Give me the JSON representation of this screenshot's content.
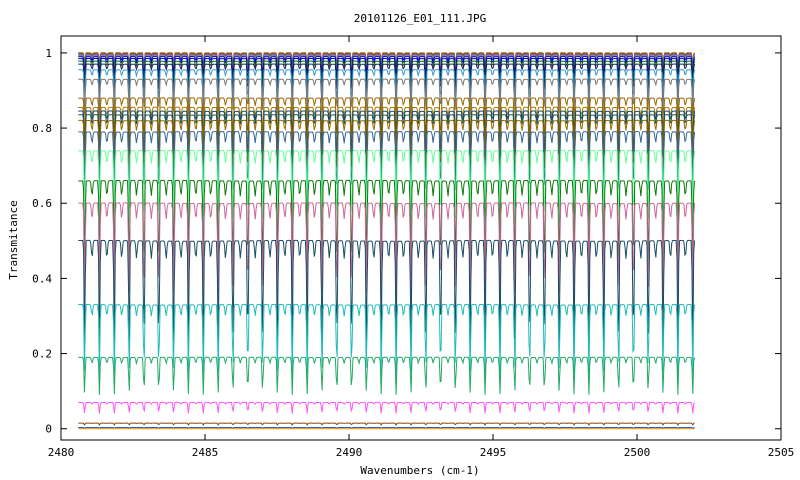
{
  "chart_data": {
    "type": "line",
    "title": "20101126_E01_111.JPG",
    "xlabel": "Wavenumbers (cm-1)",
    "ylabel": "Transmitance",
    "xlim": [
      2480,
      2505
    ],
    "ylim": [
      -0.03,
      1.045
    ],
    "xticks": [
      "2480",
      "2485",
      "2490",
      "2495",
      "2500",
      "2505"
    ],
    "yticks": [
      "0",
      "0.2",
      "0.4",
      "0.6",
      "0.8",
      "1"
    ],
    "x_range_data": [
      2480.6,
      2502.0
    ],
    "line_count_approx": 26,
    "grid": false,
    "legend": "none",
    "series": [
      {
        "baseline": 1.0,
        "depth": 0.03,
        "color": "#ff0000"
      },
      {
        "baseline": 0.998,
        "depth": 0.035,
        "color": "#00aa00"
      },
      {
        "baseline": 0.996,
        "depth": 0.04,
        "color": "#ff00ff"
      },
      {
        "baseline": 0.994,
        "depth": 0.045,
        "color": "#00aaaa"
      },
      {
        "baseline": 0.992,
        "depth": 0.05,
        "color": "#aaaa00"
      },
      {
        "baseline": 0.99,
        "depth": 0.06,
        "color": "#0000ff"
      },
      {
        "baseline": 0.985,
        "depth": 0.07,
        "color": "#0000aa"
      },
      {
        "baseline": 0.978,
        "depth": 0.08,
        "color": "#006600"
      },
      {
        "baseline": 0.97,
        "depth": 0.09,
        "color": "#1a1a66"
      },
      {
        "baseline": 0.955,
        "depth": 0.1,
        "color": "#3399cc"
      },
      {
        "baseline": 0.93,
        "depth": 0.1,
        "color": "#777777"
      },
      {
        "baseline": 0.88,
        "depth": 0.13,
        "color": "#996600"
      },
      {
        "baseline": 0.855,
        "depth": 0.14,
        "color": "#aa7700"
      },
      {
        "baseline": 0.845,
        "depth": 0.15,
        "color": "#0a4a7a"
      },
      {
        "baseline": 0.835,
        "depth": 0.16,
        "color": "#225544"
      },
      {
        "baseline": 0.82,
        "depth": 0.17,
        "color": "#996600"
      },
      {
        "baseline": 0.79,
        "depth": 0.19,
        "color": "#336699"
      },
      {
        "baseline": 0.74,
        "depth": 0.22,
        "color": "#66ff99"
      },
      {
        "baseline": 0.66,
        "depth": 0.26,
        "color": "#117711"
      },
      {
        "baseline": 0.6,
        "depth": 0.27,
        "color": "#cc6699"
      },
      {
        "baseline": 0.5,
        "depth": 0.3,
        "color": "#1a4d66"
      },
      {
        "baseline": 0.33,
        "depth": 0.19,
        "color": "#22bbbb"
      },
      {
        "baseline": 0.19,
        "depth": 0.1,
        "color": "#22aa66"
      },
      {
        "baseline": 0.07,
        "depth": 0.03,
        "color": "#ff55ff"
      },
      {
        "baseline": 0.015,
        "depth": 0.005,
        "color": "#884400"
      },
      {
        "baseline": 0.003,
        "depth": 0.002,
        "color": "#0044cc"
      },
      {
        "baseline": 0.0,
        "depth": 0.0,
        "color": "#ff9900"
      }
    ]
  }
}
